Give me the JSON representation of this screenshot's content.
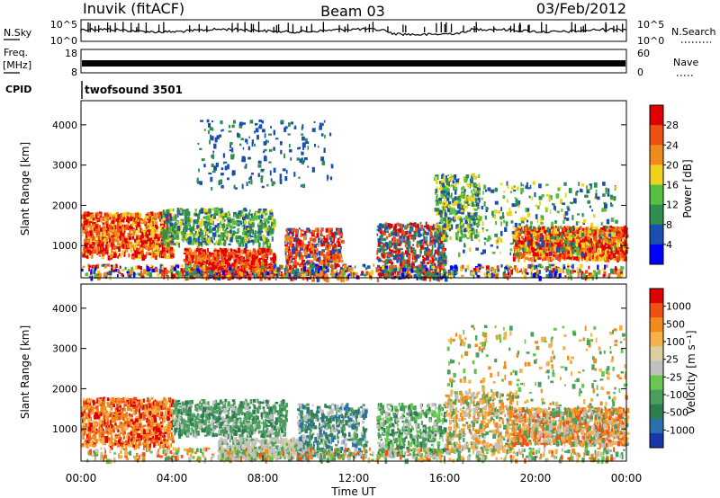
{
  "header": {
    "station": "Inuvik (fitACF)",
    "beam": "Beam 03",
    "date": "03/Feb/2012"
  },
  "params": {
    "nsky_label": "N.Sky",
    "nsearch_label": "N.Search",
    "freq_label": "Freq.",
    "freq_unit": "[MHz]",
    "nave_label": "Nave",
    "cpid_label": "CPID",
    "cpid_value": "twofsound 3501",
    "noise_top_tick": "10^5",
    "noise_bottom_tick": "10^0",
    "freq_ticks": [
      "18",
      "8"
    ],
    "nave_ticks": [
      "60",
      "0"
    ]
  },
  "colors": {
    "power": [
      "#0000ff",
      "#1a4fb0",
      "#2f8f4f",
      "#55c040",
      "#f0d21e",
      "#f08a1e",
      "#f05014",
      "#e00000"
    ],
    "velocity": [
      "#1638a8",
      "#2a6fb0",
      "#2e7d4f",
      "#4a9e5e",
      "#66c84d",
      "#c0c0c0",
      "#d9cfa0",
      "#f5b24a",
      "#f08a1e",
      "#f05014",
      "#e00000"
    ]
  },
  "chart_data": [
    {
      "type": "heatmap",
      "panel": "power",
      "xlabel": "",
      "ylabel": "Slant Range [km]",
      "xlim_hours": [
        0,
        24
      ],
      "ylim": [
        200,
        4600
      ],
      "ytick_values": [
        1000,
        2000,
        3000,
        4000
      ],
      "ytick_labels": [
        "1000",
        "2000",
        "3000",
        "4000"
      ],
      "colorbar_label": "Power [dB]",
      "colorbar_ticks": [
        "28",
        "24",
        "20",
        "16",
        "12",
        "8",
        "4"
      ],
      "range": [
        0,
        30
      ]
    },
    {
      "type": "heatmap",
      "panel": "velocity",
      "xlabel": "Time UT",
      "ylabel": "Slant Range [km]",
      "xlim_hours": [
        0,
        24
      ],
      "ylim": [
        200,
        4600
      ],
      "ytick_values": [
        1000,
        2000,
        3000,
        4000
      ],
      "ytick_labels": [
        "1000",
        "2000",
        "3000",
        "4000"
      ],
      "xtick_values": [
        0,
        4,
        8,
        12,
        16,
        20,
        24
      ],
      "xtick_labels": [
        "00:00",
        "04:00",
        "08:00",
        "12:00",
        "16:00",
        "20:00",
        "00:00"
      ],
      "colorbar_label": "Velocity [m s⁻¹]",
      "colorbar_ticks": [
        "1000",
        "500",
        "100",
        "25",
        "-25",
        "-100",
        "-500",
        "-1000"
      ]
    }
  ]
}
